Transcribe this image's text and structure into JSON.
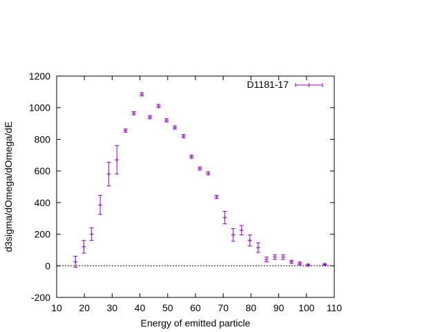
{
  "chart_data": {
    "type": "scatter",
    "xlabel": "Energy of emitted particle",
    "ylabel": "d3sigma/dOmega/dOmega/dE",
    "xlim": [
      10,
      110
    ],
    "ylim": [
      -200,
      1200
    ],
    "xticks": [
      "10",
      "20",
      "30",
      "40",
      "50",
      "60",
      "70",
      "80",
      "90",
      "100",
      "110"
    ],
    "yticks": [
      "-200",
      "0",
      "200",
      "400",
      "600",
      "800",
      "1000",
      "1200"
    ],
    "grid": false,
    "zero_line": true,
    "legend_position": "top-right",
    "series": [
      {
        "name": "D1181-17",
        "color": "#9400d3",
        "points": [
          {
            "x": 16.8,
            "y": 25,
            "err": 35
          },
          {
            "x": 19.8,
            "y": 120,
            "err": 40
          },
          {
            "x": 22.6,
            "y": 200,
            "err": 40
          },
          {
            "x": 25.7,
            "y": 385,
            "err": 60
          },
          {
            "x": 28.8,
            "y": 580,
            "err": 75
          },
          {
            "x": 31.7,
            "y": 670,
            "err": 90
          },
          {
            "x": 34.8,
            "y": 855,
            "err": 10
          },
          {
            "x": 37.8,
            "y": 965,
            "err": 10
          },
          {
            "x": 40.7,
            "y": 1085,
            "err": 10
          },
          {
            "x": 43.6,
            "y": 940,
            "err": 10
          },
          {
            "x": 46.7,
            "y": 1010,
            "err": 10
          },
          {
            "x": 49.6,
            "y": 920,
            "err": 10
          },
          {
            "x": 52.6,
            "y": 875,
            "err": 10
          },
          {
            "x": 55.7,
            "y": 820,
            "err": 10
          },
          {
            "x": 58.6,
            "y": 690,
            "err": 10
          },
          {
            "x": 61.6,
            "y": 615,
            "err": 10
          },
          {
            "x": 64.6,
            "y": 585,
            "err": 10
          },
          {
            "x": 67.6,
            "y": 435,
            "err": 10
          },
          {
            "x": 70.6,
            "y": 305,
            "err": 40
          },
          {
            "x": 73.6,
            "y": 195,
            "err": 40
          },
          {
            "x": 76.6,
            "y": 225,
            "err": 30
          },
          {
            "x": 79.6,
            "y": 160,
            "err": 35
          },
          {
            "x": 82.6,
            "y": 115,
            "err": 30
          },
          {
            "x": 85.6,
            "y": 40,
            "err": 15
          },
          {
            "x": 88.6,
            "y": 55,
            "err": 15
          },
          {
            "x": 91.6,
            "y": 55,
            "err": 15
          },
          {
            "x": 94.6,
            "y": 25,
            "err": 10
          },
          {
            "x": 97.6,
            "y": 15,
            "err": 8
          },
          {
            "x": 100.6,
            "y": 5,
            "err": 5
          },
          {
            "x": 106.6,
            "y": 8,
            "err": 5
          }
        ]
      }
    ]
  }
}
